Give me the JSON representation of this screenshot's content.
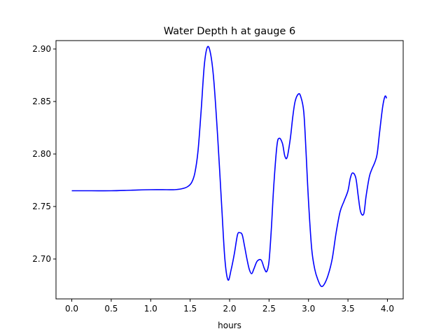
{
  "chart_data": {
    "type": "line",
    "title": "Water Depth h at gauge 6",
    "xlabel": "hours",
    "ylabel": "",
    "xlim": [
      -0.2,
      4.2
    ],
    "ylim": [
      2.662,
      2.908
    ],
    "xticks": [
      0.0,
      0.5,
      1.0,
      1.5,
      2.0,
      2.5,
      3.0,
      3.5,
      4.0
    ],
    "xtick_labels": [
      "0.0",
      "0.5",
      "1.0",
      "1.5",
      "2.0",
      "2.5",
      "3.0",
      "3.5",
      "4.0"
    ],
    "yticks": [
      2.7,
      2.75,
      2.8,
      2.85,
      2.9
    ],
    "ytick_labels": [
      "2.70",
      "2.75",
      "2.80",
      "2.85",
      "2.90"
    ],
    "grid": false,
    "series": [
      {
        "color": "#0000ff",
        "x": [
          0.0,
          0.25,
          0.5,
          0.75,
          1.0,
          1.2,
          1.3,
          1.4,
          1.47,
          1.52,
          1.56,
          1.6,
          1.64,
          1.68,
          1.72,
          1.76,
          1.8,
          1.85,
          1.9,
          1.94,
          1.98,
          2.02,
          2.06,
          2.1,
          2.13,
          2.16,
          2.19,
          2.22,
          2.25,
          2.28,
          2.31,
          2.35,
          2.4,
          2.44,
          2.47,
          2.5,
          2.53,
          2.56,
          2.6,
          2.63,
          2.67,
          2.7,
          2.73,
          2.77,
          2.8,
          2.83,
          2.87,
          2.9,
          2.94,
          2.97,
          3.0,
          3.04,
          3.08,
          3.12,
          3.16,
          3.2,
          3.25,
          3.3,
          3.35,
          3.4,
          3.45,
          3.5,
          3.53,
          3.56,
          3.6,
          3.63,
          3.66,
          3.7,
          3.73,
          3.77,
          3.8,
          3.84,
          3.87,
          3.9,
          3.94,
          3.97,
          3.99
        ],
        "values": [
          2.765,
          2.765,
          2.765,
          2.7655,
          2.766,
          2.766,
          2.766,
          2.767,
          2.769,
          2.773,
          2.782,
          2.803,
          2.842,
          2.885,
          2.902,
          2.895,
          2.87,
          2.815,
          2.75,
          2.7,
          2.68,
          2.69,
          2.705,
          2.723,
          2.725,
          2.723,
          2.712,
          2.7,
          2.69,
          2.686,
          2.691,
          2.698,
          2.699,
          2.691,
          2.688,
          2.698,
          2.73,
          2.77,
          2.808,
          2.815,
          2.81,
          2.798,
          2.797,
          2.815,
          2.835,
          2.85,
          2.857,
          2.855,
          2.84,
          2.8,
          2.755,
          2.71,
          2.69,
          2.68,
          2.674,
          2.676,
          2.685,
          2.7,
          2.725,
          2.745,
          2.755,
          2.765,
          2.777,
          2.782,
          2.777,
          2.76,
          2.745,
          2.743,
          2.76,
          2.778,
          2.785,
          2.792,
          2.8,
          2.82,
          2.845,
          2.855,
          2.853
        ]
      }
    ]
  }
}
